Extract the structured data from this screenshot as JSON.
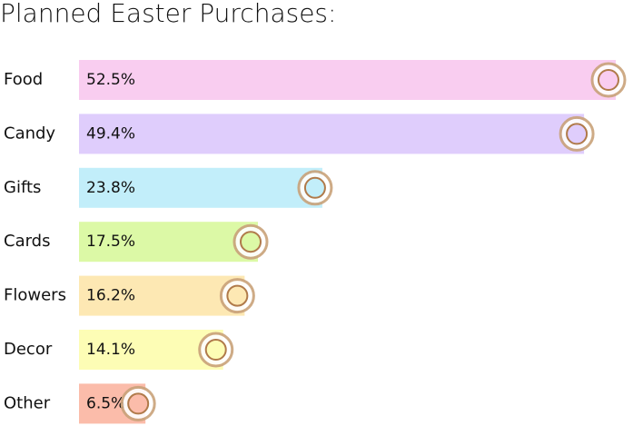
{
  "chart_data": {
    "type": "hbar",
    "title": "Planned Easter Purchases:",
    "categories": [
      "Food",
      "Candy",
      "Gifts",
      "Cards",
      "Flowers",
      "Decor",
      "Other"
    ],
    "values": [
      52.5,
      49.4,
      23.8,
      17.5,
      16.2,
      14.1,
      6.5
    ],
    "value_labels": [
      "52.5%",
      "49.4%",
      "23.8%",
      "17.5%",
      "16.2%",
      "14.1%",
      "6.5%"
    ],
    "colors": [
      "#f9cdf0",
      "#dfcdfc",
      "#c2eefa",
      "#dcf9a6",
      "#fde8b3",
      "#fdfdb5",
      "#fbbcaa"
    ]
  }
}
